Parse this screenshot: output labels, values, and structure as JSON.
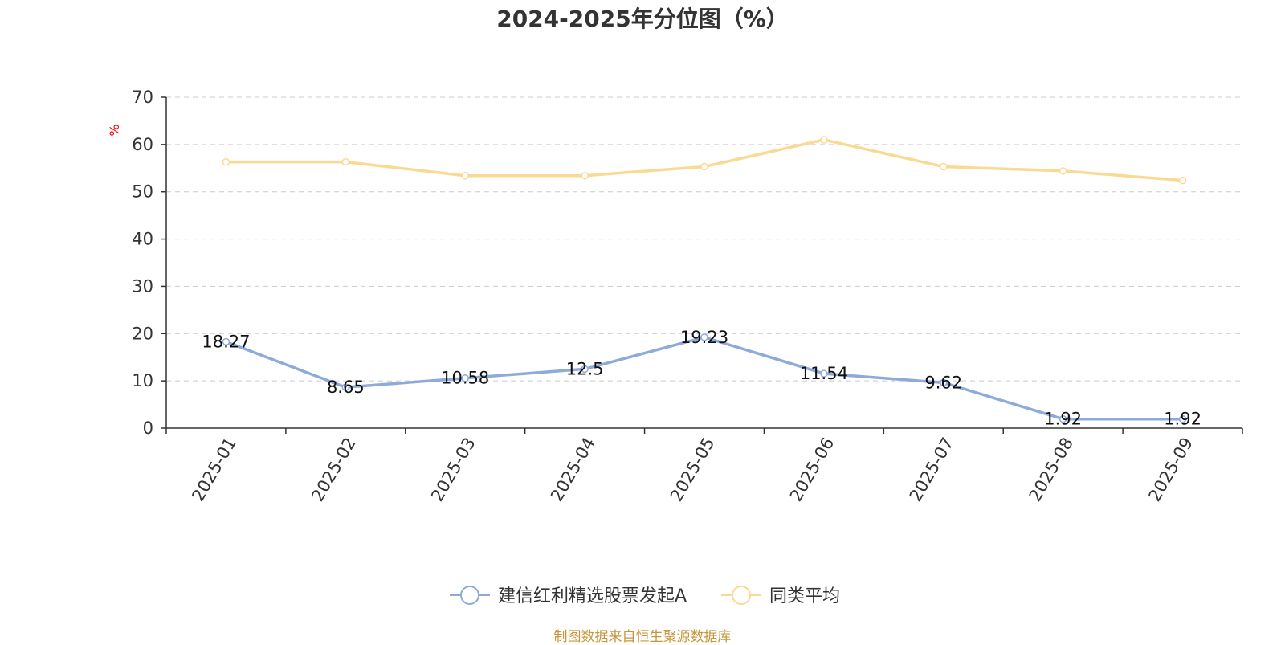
{
  "chart_data": {
    "type": "line",
    "title": "2024-2025年分位图（%）",
    "ylabel": "%",
    "xlabel": "",
    "categories": [
      "2025-01",
      "2025-02",
      "2025-03",
      "2025-04",
      "2025-05",
      "2025-06",
      "2025-07",
      "2025-08",
      "2025-09"
    ],
    "ylim": [
      0,
      70
    ],
    "yticks": [
      0,
      10,
      20,
      30,
      40,
      50,
      60,
      70
    ],
    "grid": true,
    "legend_position": "bottom-center",
    "series": [
      {
        "name": "建信红利精选股票发起A",
        "color": "#8eaadb",
        "values": [
          18.27,
          8.65,
          10.58,
          12.5,
          19.23,
          11.54,
          9.62,
          1.92,
          1.92
        ],
        "labels": [
          "18.27",
          "8.65",
          "10.58",
          "12.5",
          "19.23",
          "11.54",
          "9.62",
          "1.92",
          "1.92"
        ]
      },
      {
        "name": "同类平均",
        "color": "#fbd992",
        "values": [
          56.3,
          56.3,
          53.4,
          53.4,
          55.3,
          61.0,
          55.3,
          54.4,
          52.4
        ]
      }
    ]
  },
  "source_text": "制图数据来自恒生聚源数据库",
  "colors": {
    "label_axis": "#ff0000",
    "source": "#c8953b"
  }
}
